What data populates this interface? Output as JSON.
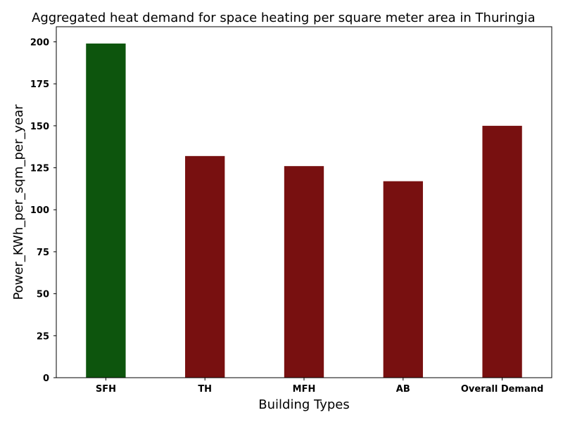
{
  "chart_data": {
    "type": "bar",
    "title": "Aggregated heat demand for space heating per square meter area in Thuringia",
    "xlabel": "Building Types",
    "ylabel": "Power_KWh_per_sqm_per_year",
    "categories": [
      "SFH",
      "TH",
      "MFH",
      "AB",
      "Overall Demand"
    ],
    "values": [
      199,
      132,
      126,
      117,
      150
    ],
    "bar_colors": [
      "#0d550d",
      "#781010",
      "#781010",
      "#781010",
      "#781010"
    ],
    "ylim": [
      0,
      209
    ],
    "yticks": [
      0,
      25,
      50,
      75,
      100,
      125,
      150,
      175,
      200
    ],
    "grid": false,
    "legend": "none"
  }
}
